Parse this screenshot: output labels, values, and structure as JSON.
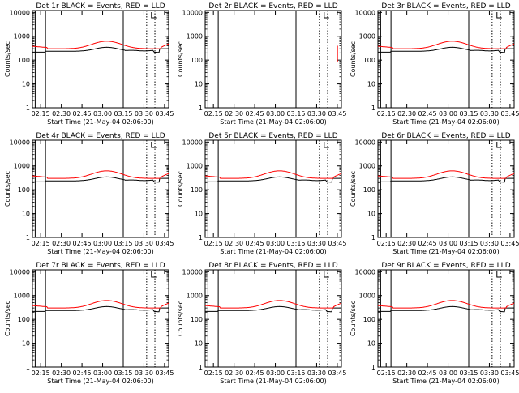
{
  "chart_data": [
    {
      "type": "line",
      "title": "Det 1r BLACK = Events, RED = LLD",
      "xlabel": "Start Time (21-May-04 02:06:00)",
      "ylabel": "Counts/sec",
      "x_ticks": [
        "02:15",
        "02:30",
        "02:45",
        "03:00",
        "03:15",
        "03:30",
        "03:45"
      ],
      "y_ticks": [
        "1",
        "10",
        "100",
        "1000",
        "10000"
      ],
      "y_scale": "log",
      "ylim": [
        1,
        12000
      ],
      "data_present": "full",
      "series_colors": [
        "#000000",
        "#ff0000"
      ]
    },
    {
      "type": "line",
      "title": "Det 2r BLACK = Events, RED = LLD",
      "xlabel": "Start Time (21-May-04 02:06:00)",
      "ylabel": "Counts/sec",
      "x_ticks": [
        "02:15",
        "02:30",
        "02:45",
        "03:00",
        "03:15",
        "03:30",
        "03:45"
      ],
      "y_ticks": [
        "1",
        "10",
        "100",
        "1000",
        "10000"
      ],
      "y_scale": "log",
      "ylim": [
        1,
        12000
      ],
      "data_present": "end_spike_only",
      "series_colors": [
        "#000000",
        "#ff0000"
      ]
    },
    {
      "type": "line",
      "title": "Det 3r BLACK = Events, RED = LLD",
      "xlabel": "Start Time (21-May-04 02:06:00)",
      "ylabel": "Counts/sec",
      "x_ticks": [
        "02:15",
        "02:30",
        "02:45",
        "03:00",
        "03:15",
        "03:30",
        "03:45"
      ],
      "y_ticks": [
        "1",
        "10",
        "100",
        "1000",
        "10000"
      ],
      "y_scale": "log",
      "ylim": [
        1,
        12000
      ],
      "data_present": "full",
      "series_colors": [
        "#000000",
        "#ff0000"
      ]
    },
    {
      "type": "line",
      "title": "Det 4r BLACK = Events, RED = LLD",
      "xlabel": "Start Time (21-May-04 02:06:00)",
      "ylabel": "Counts/sec",
      "x_ticks": [
        "02:15",
        "02:30",
        "02:45",
        "03:00",
        "03:15",
        "03:30",
        "03:45"
      ],
      "y_ticks": [
        "1",
        "10",
        "100",
        "1000",
        "10000"
      ],
      "y_scale": "log",
      "ylim": [
        1,
        12000
      ],
      "data_present": "full",
      "series_colors": [
        "#000000",
        "#ff0000"
      ]
    },
    {
      "type": "line",
      "title": "Det 5r BLACK = Events, RED = LLD",
      "xlabel": "Start Time (21-May-04 02:06:00)",
      "ylabel": "Counts/sec",
      "x_ticks": [
        "02:15",
        "02:30",
        "02:45",
        "03:00",
        "03:15",
        "03:30",
        "03:45"
      ],
      "y_ticks": [
        "1",
        "10",
        "100",
        "1000",
        "10000"
      ],
      "y_scale": "log",
      "ylim": [
        1,
        12000
      ],
      "data_present": "full",
      "series_colors": [
        "#000000",
        "#ff0000"
      ]
    },
    {
      "type": "line",
      "title": "Det 6r BLACK = Events, RED = LLD",
      "xlabel": "Start Time (21-May-04 02:06:00)",
      "ylabel": "Counts/sec",
      "x_ticks": [
        "02:15",
        "02:30",
        "02:45",
        "03:00",
        "03:15",
        "03:30",
        "03:45"
      ],
      "y_ticks": [
        "1",
        "10",
        "100",
        "1000",
        "10000"
      ],
      "y_scale": "log",
      "ylim": [
        1,
        12000
      ],
      "data_present": "full",
      "series_colors": [
        "#000000",
        "#ff0000"
      ]
    },
    {
      "type": "line",
      "title": "Det 7r BLACK = Events, RED = LLD",
      "xlabel": "Start Time (21-May-04 02:06:00)",
      "ylabel": "Counts/sec",
      "x_ticks": [
        "02:15",
        "02:30",
        "02:45",
        "03:00",
        "03:15",
        "03:30",
        "03:45"
      ],
      "y_ticks": [
        "1",
        "10",
        "100",
        "1000",
        "10000"
      ],
      "y_scale": "log",
      "ylim": [
        1,
        12000
      ],
      "data_present": "full",
      "series_colors": [
        "#000000",
        "#ff0000"
      ]
    },
    {
      "type": "line",
      "title": "Det 8r BLACK = Events, RED = LLD",
      "xlabel": "Start Time (21-May-04 02:06:00)",
      "ylabel": "Counts/sec",
      "x_ticks": [
        "02:15",
        "02:30",
        "02:45",
        "03:00",
        "03:15",
        "03:30",
        "03:45"
      ],
      "y_ticks": [
        "1",
        "10",
        "100",
        "1000",
        "10000"
      ],
      "y_scale": "log",
      "ylim": [
        1,
        12000
      ],
      "data_present": "full",
      "series_colors": [
        "#000000",
        "#ff0000"
      ]
    },
    {
      "type": "line",
      "title": "Det 9r BLACK = Events, RED = LLD",
      "xlabel": "Start Time (21-May-04 02:06:00)",
      "ylabel": "Counts/sec",
      "x_ticks": [
        "02:15",
        "02:30",
        "02:45",
        "03:00",
        "03:15",
        "03:30",
        "03:45"
      ],
      "y_ticks": [
        "1",
        "10",
        "100",
        "1000",
        "10000"
      ],
      "y_scale": "log",
      "ylim": [
        1,
        12000
      ],
      "data_present": "full",
      "series_colors": [
        "#000000",
        "#ff0000"
      ]
    }
  ]
}
